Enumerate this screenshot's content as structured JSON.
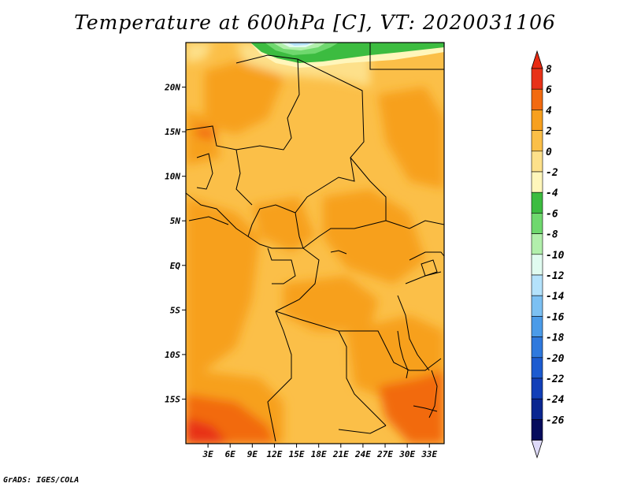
{
  "title": "Temperature at 600hPa [C], VT: 2020031106",
  "credit": "GrADS: IGES/COLA",
  "map": {
    "projection": "latlon",
    "lon_range": [
      0,
      35
    ],
    "lat_range": [
      -20,
      25
    ],
    "lat_ticks": [
      {
        "value": 20,
        "label": "20N"
      },
      {
        "value": 15,
        "label": "15N"
      },
      {
        "value": 10,
        "label": "10N"
      },
      {
        "value": 5,
        "label": "5N"
      },
      {
        "value": 0,
        "label": "EQ"
      },
      {
        "value": -5,
        "label": "5S"
      },
      {
        "value": -10,
        "label": "10S"
      },
      {
        "value": -15,
        "label": "15S"
      }
    ],
    "lon_ticks": [
      {
        "value": 3,
        "label": "3E"
      },
      {
        "value": 6,
        "label": "6E"
      },
      {
        "value": 9,
        "label": "9E"
      },
      {
        "value": 12,
        "label": "12E"
      },
      {
        "value": 15,
        "label": "15E"
      },
      {
        "value": 18,
        "label": "18E"
      },
      {
        "value": 21,
        "label": "21E"
      },
      {
        "value": 24,
        "label": "24E"
      },
      {
        "value": 27,
        "label": "27E"
      },
      {
        "value": 30,
        "label": "30E"
      },
      {
        "value": 33,
        "label": "33E"
      }
    ]
  },
  "colorbar": {
    "levels": [
      "8",
      "6",
      "4",
      "2",
      "0",
      "-2",
      "-4",
      "-6",
      "-8",
      "-10",
      "-12",
      "-14",
      "-16",
      "-18",
      "-20",
      "-22",
      "-24",
      "-26"
    ],
    "colors": [
      "#e83218",
      "#f26a10",
      "#f7a01e",
      "#fbbf48",
      "#fde08a",
      "#fff6bb",
      "#3cbc40",
      "#6fd86e",
      "#b2efac",
      "#e0fbf0",
      "#b4e2fb",
      "#7cc0f2",
      "#4b9be8",
      "#2f79dd",
      "#1c5bd0",
      "#123fb8",
      "#0a2690",
      "#060c5c"
    ],
    "top_color": "#e82a12",
    "bottom_color": "#ddd9f7"
  }
}
